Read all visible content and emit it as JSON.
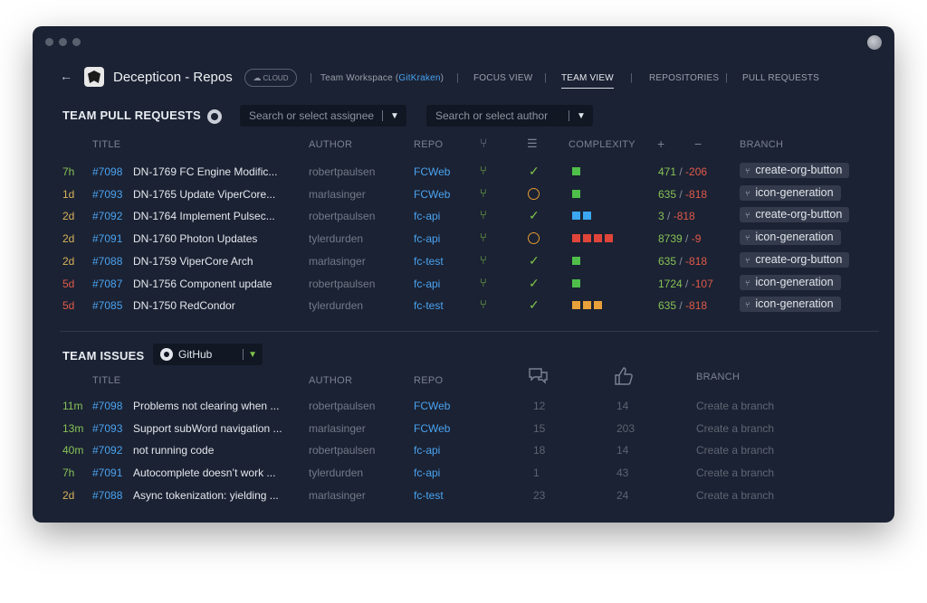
{
  "header": {
    "app_title": "Decepticon - Repos",
    "cloud_badge": "CLOUD",
    "workspace_prefix": "Team Workspace (",
    "workspace_name": "GitKraken",
    "workspace_suffix": ")",
    "nav": [
      "FOCUS VIEW",
      "TEAM VIEW",
      "REPOSITORIES",
      "PULL REQUESTS"
    ],
    "active_nav": "TEAM VIEW"
  },
  "prs": {
    "title": "TEAM PULL REQUESTS",
    "assignee_placeholder": "Search or select assignee",
    "author_placeholder": "Search or select author",
    "columns": {
      "title": "TITLE",
      "author": "AUTHOR",
      "repo": "REPO",
      "complexity": "COMPLEXITY",
      "plus": "+",
      "minus": "−",
      "branch": "BRANCH"
    },
    "rows": [
      {
        "age": "7h",
        "num": "#7098",
        "title": "DN-1769 FC Engine Modific...",
        "author": "robertpaulsen",
        "repo": "FCWeb",
        "status": "ok",
        "complexity": [
          "#4fbf4a"
        ],
        "plus": "471",
        "minus": "-206",
        "branch": "create-org-button"
      },
      {
        "age": "1d",
        "num": "#7093",
        "title": "DN-1765 Update ViperCore...",
        "author": "marlasinger",
        "repo": "FCWeb",
        "status": "pending",
        "complexity": [
          "#4fbf4a"
        ],
        "plus": "635",
        "minus": "-818",
        "branch": "icon-generation"
      },
      {
        "age": "2d",
        "num": "#7092",
        "title": "DN-1764 Implement Pulsec...",
        "author": "robertpaulsen",
        "repo": "fc-api",
        "status": "ok",
        "complexity": [
          "#3aa7f0",
          "#3aa7f0"
        ],
        "plus": "3",
        "minus": "-818",
        "branch": "create-org-button"
      },
      {
        "age": "2d",
        "num": "#7091",
        "title": "DN-1760 Photon Updates",
        "author": "tylerdurden",
        "repo": "fc-api",
        "status": "pending",
        "complexity": [
          "#e0453a",
          "#e0453a",
          "#e0453a",
          "#e0453a"
        ],
        "plus": "8739",
        "minus": "-9",
        "branch": "icon-generation"
      },
      {
        "age": "2d",
        "num": "#7088",
        "title": "DN-1759 ViperCore Arch",
        "author": "marlasinger",
        "repo": "fc-test",
        "status": "ok",
        "complexity": [
          "#4fbf4a"
        ],
        "plus": "635",
        "minus": "-818",
        "branch": "create-org-button"
      },
      {
        "age": "5d",
        "num": "#7087",
        "title": "DN-1756 Component update",
        "author": "robertpaulsen",
        "repo": "fc-api",
        "status": "ok",
        "complexity": [
          "#4fbf4a"
        ],
        "plus": "1724",
        "minus": "-107",
        "branch": "icon-generation"
      },
      {
        "age": "5d",
        "num": "#7085",
        "title": "DN-1750 RedCondor",
        "author": "tylerdurden",
        "repo": "fc-test",
        "status": "ok",
        "complexity": [
          "#e8a13a",
          "#e8a13a",
          "#e8a13a"
        ],
        "plus": "635",
        "minus": "-818",
        "branch": "icon-generation"
      }
    ]
  },
  "issues": {
    "title": "TEAM ISSUES",
    "provider": "GitHub",
    "columns": {
      "title": "TITLE",
      "author": "AUTHOR",
      "repo": "REPO",
      "branch": "BRANCH"
    },
    "rows": [
      {
        "age": "11m",
        "num": "#7098",
        "title": "Problems not clearing when ...",
        "author": "robertpaulsen",
        "repo": "FCWeb",
        "comments": "12",
        "likes": "14",
        "branch": "Create a branch"
      },
      {
        "age": "13m",
        "num": "#7093",
        "title": "Support subWord navigation ...",
        "author": "marlasinger",
        "repo": "FCWeb",
        "comments": "15",
        "likes": "203",
        "branch": "Create a branch"
      },
      {
        "age": "40m",
        "num": "#7092",
        "title": "not running code",
        "author": "robertpaulsen",
        "repo": "fc-api",
        "comments": "18",
        "likes": "14",
        "branch": "Create a branch"
      },
      {
        "age": "7h",
        "num": "#7091",
        "title": "Autocomplete doesn’t work ...",
        "author": "tylerdurden",
        "repo": "fc-api",
        "comments": "1",
        "likes": "43",
        "branch": "Create a branch"
      },
      {
        "age": "2d",
        "num": "#7088",
        "title": "Async tokenization: yielding ...",
        "author": "marlasinger",
        "repo": "fc-test",
        "comments": "23",
        "likes": "24",
        "branch": "Create a branch"
      }
    ]
  }
}
